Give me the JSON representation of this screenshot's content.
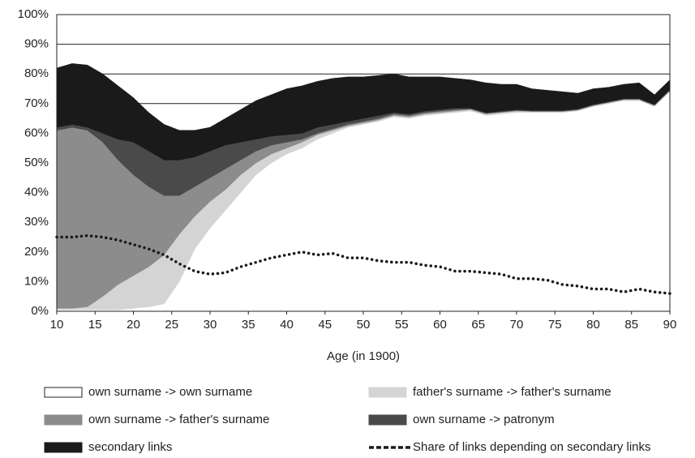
{
  "chart_data": {
    "type": "area",
    "stacked": true,
    "xlabel": "Age (in 1900)",
    "x": [
      10,
      12,
      14,
      16,
      18,
      20,
      22,
      24,
      26,
      28,
      30,
      32,
      34,
      36,
      38,
      40,
      42,
      44,
      46,
      48,
      50,
      52,
      54,
      56,
      58,
      60,
      62,
      64,
      66,
      68,
      70,
      72,
      74,
      76,
      78,
      80,
      82,
      84,
      86,
      88,
      90
    ],
    "xlim": [
      10,
      90
    ],
    "xticks": [
      10,
      15,
      20,
      25,
      30,
      35,
      40,
      45,
      50,
      55,
      60,
      65,
      70,
      75,
      80,
      85,
      90
    ],
    "ylim": [
      0,
      100
    ],
    "yticks": [
      {
        "value": 0,
        "label": "0%"
      },
      {
        "value": 10,
        "label": "10%"
      },
      {
        "value": 20,
        "label": "20%"
      },
      {
        "value": 30,
        "label": "30%"
      },
      {
        "value": 40,
        "label": "40%"
      },
      {
        "value": 50,
        "label": "50%"
      },
      {
        "value": 60,
        "label": "60%"
      },
      {
        "value": 70,
        "label": "70%"
      },
      {
        "value": 80,
        "label": "80%"
      },
      {
        "value": 90,
        "label": "90%"
      },
      {
        "value": 100,
        "label": "100%"
      }
    ],
    "grid": true,
    "series": [
      {
        "name": "own surname -> own surname",
        "color": "#ffffff",
        "values": [
          0.5,
          0.5,
          0.5,
          0.5,
          0.5,
          1,
          1.5,
          2.5,
          10,
          21,
          28,
          34,
          40,
          46,
          50,
          53,
          55,
          58,
          60,
          62,
          63,
          64,
          65.5,
          65,
          66,
          66.5,
          67,
          67.5,
          66,
          66.5,
          67,
          67,
          67,
          67,
          67.5,
          69,
          70,
          71,
          71,
          69,
          74
        ]
      },
      {
        "name": "father's surname -> father's surname",
        "color": "#d4d4d4",
        "values": [
          0.5,
          0.5,
          1,
          4.5,
          8.5,
          11,
          13.5,
          16.5,
          16,
          11,
          9,
          7,
          6,
          4,
          3,
          2,
          2,
          1.5,
          1,
          0.5,
          0.5,
          0.5,
          0.5,
          0.5,
          0.5,
          0.5,
          0.5,
          0.5,
          0.5,
          0.5,
          0.5,
          0.3,
          0.3,
          0.3,
          0.3,
          0.3,
          0.3,
          0.3,
          0.3,
          0.3,
          0.3
        ]
      },
      {
        "name": "own surname -> father's surname",
        "color": "#8c8c8c",
        "values": [
          60,
          61,
          59.5,
          52,
          42,
          34,
          27,
          20,
          13,
          10,
          8,
          7,
          5,
          4,
          3,
          2,
          1,
          0.5,
          0.5,
          0.5,
          0.5,
          0.5,
          0.5,
          0.5,
          0.5,
          0.5,
          0.5,
          0.2,
          0.2,
          0.2,
          0.2,
          0.2,
          0.2,
          0.2,
          0.2,
          0.2,
          0.2,
          0.2,
          0.2,
          0.2,
          0.2
        ]
      },
      {
        "name": "own surname -> patronym",
        "color": "#4a4a4a",
        "values": [
          1,
          1,
          1,
          3,
          7,
          11,
          12,
          12,
          12,
          10,
          9,
          8,
          6,
          4,
          3,
          2.5,
          2,
          2,
          1.5,
          1,
          1,
          1,
          0.5,
          0.5,
          0.5,
          0.5,
          0.5,
          0.3,
          0.3,
          0.3,
          0.3,
          0.2,
          0.2,
          0.2,
          0.2,
          0.2,
          0.2,
          0.2,
          0.2,
          0.2,
          0.2
        ]
      },
      {
        "name": "secondary links",
        "color": "#1a1a1a",
        "values": [
          20,
          20.5,
          21,
          20,
          18,
          15,
          13,
          12,
          10,
          9,
          8,
          9,
          11,
          13,
          14,
          15.5,
          16,
          15.5,
          15.5,
          15,
          14,
          13.5,
          13,
          12.5,
          11.5,
          11,
          10,
          9.5,
          10,
          9,
          8.5,
          7.3,
          6.8,
          6.3,
          5.3,
          5.3,
          4.8,
          4.8,
          5.3,
          3.3,
          3.3
        ]
      },
      {
        "name": "Share of links depending on secondary links",
        "type": "line",
        "color": "#1a1a1a",
        "values": [
          25,
          25,
          25.5,
          25,
          24,
          22.5,
          21,
          19,
          16,
          13.5,
          12.5,
          13,
          15,
          16.5,
          18,
          19,
          20,
          19,
          19.5,
          18,
          18,
          17,
          16.5,
          16.5,
          15.5,
          15,
          13.5,
          13.5,
          13,
          12.5,
          11,
          11,
          10.5,
          9,
          8.5,
          7.5,
          7.5,
          6.5,
          7.5,
          6.5,
          6
        ]
      }
    ]
  }
}
